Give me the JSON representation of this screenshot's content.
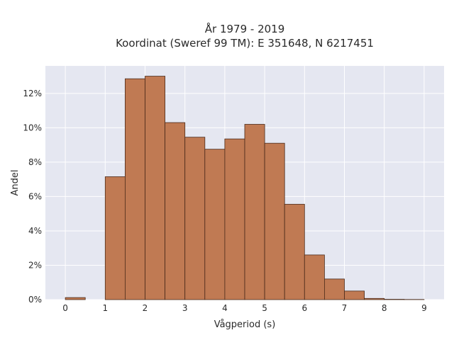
{
  "chart_data": {
    "type": "bar",
    "title_line1": "År 1979 - 2019",
    "title_line2": "Koordinat (Sweref 99 TM): E 351648, N 6217451",
    "xlabel": "Vågperiod (s)",
    "ylabel": "Andel",
    "xlim": [
      -0.5,
      9.5
    ],
    "ylim": [
      0,
      13.6
    ],
    "xticks": [
      0,
      1,
      2,
      3,
      4,
      5,
      6,
      7,
      8,
      9
    ],
    "xtick_labels": [
      "0",
      "1",
      "2",
      "3",
      "4",
      "5",
      "6",
      "7",
      "8",
      "9"
    ],
    "yticks": [
      0,
      2,
      4,
      6,
      8,
      10,
      12
    ],
    "ytick_labels": [
      "0%",
      "2%",
      "4%",
      "6%",
      "8%",
      "10%",
      "12%"
    ],
    "bins": [
      {
        "x0": 0.0,
        "x1": 0.5,
        "value": 0.12
      },
      {
        "x0": 1.0,
        "x1": 1.5,
        "value": 7.15
      },
      {
        "x0": 1.5,
        "x1": 2.0,
        "value": 12.85
      },
      {
        "x0": 2.0,
        "x1": 2.5,
        "value": 13.0
      },
      {
        "x0": 2.5,
        "x1": 3.0,
        "value": 10.3
      },
      {
        "x0": 3.0,
        "x1": 3.5,
        "value": 9.45
      },
      {
        "x0": 3.5,
        "x1": 4.0,
        "value": 8.75
      },
      {
        "x0": 4.0,
        "x1": 4.5,
        "value": 9.35
      },
      {
        "x0": 4.5,
        "x1": 5.0,
        "value": 10.2
      },
      {
        "x0": 5.0,
        "x1": 5.5,
        "value": 9.1
      },
      {
        "x0": 5.5,
        "x1": 6.0,
        "value": 5.55
      },
      {
        "x0": 6.0,
        "x1": 6.5,
        "value": 2.6
      },
      {
        "x0": 6.5,
        "x1": 7.0,
        "value": 1.2
      },
      {
        "x0": 7.0,
        "x1": 7.5,
        "value": 0.5
      },
      {
        "x0": 7.5,
        "x1": 8.0,
        "value": 0.07
      },
      {
        "x0": 8.0,
        "x1": 8.5,
        "value": 0.02
      },
      {
        "x0": 8.5,
        "x1": 9.0,
        "value": 0.01
      }
    ],
    "grid": true,
    "colors": {
      "bar": "#c07a53",
      "bar_edge": "#4a2a1a",
      "plot_bg": "#e5e7f1",
      "grid": "#ffffff"
    }
  }
}
